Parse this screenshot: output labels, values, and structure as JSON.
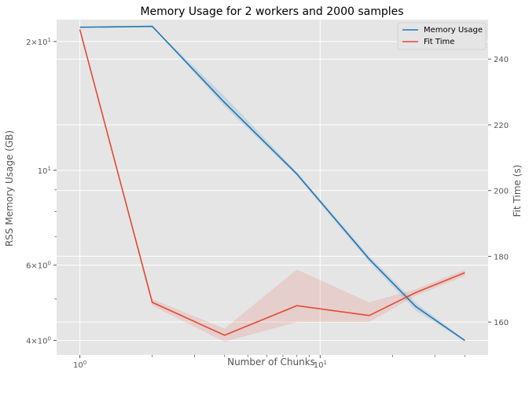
{
  "chart_data": {
    "type": "line",
    "title": "Memory Usage for 2 workers and 2000 samples",
    "xlabel": "Number of Chunks",
    "ylabel_left": "RSS Memory Usage (GB)",
    "ylabel_right": "Fit Time (s)",
    "x_scale": "log",
    "y_left_scale": "log",
    "y_right_scale": "linear",
    "xlim": [
      0.8,
      50
    ],
    "ylim_left": [
      3.7,
      22.5
    ],
    "ylim_right": [
      150,
      252
    ],
    "grid": true,
    "legend_position": "top-right",
    "x_ticks": [
      {
        "value": 1,
        "label": "10^0"
      },
      {
        "value": 10,
        "label": "10^1"
      }
    ],
    "y_left_ticks": [
      {
        "value": 4,
        "label": "4×10^0"
      },
      {
        "value": 6,
        "label": "6×10^0"
      },
      {
        "value": 10,
        "label": "10^1"
      },
      {
        "value": 20,
        "label": "2×10^1"
      }
    ],
    "y_right_ticks": [
      {
        "value": 160,
        "label": "160"
      },
      {
        "value": 180,
        "label": "180"
      },
      {
        "value": 200,
        "label": "200"
      },
      {
        "value": 220,
        "label": "220"
      },
      {
        "value": 240,
        "label": "240"
      }
    ],
    "series": [
      {
        "name": "Memory Usage",
        "axis": "left",
        "color": "#1f77b4",
        "x": [
          1,
          2,
          4,
          8,
          16,
          25,
          40
        ],
        "y": [
          21.6,
          21.7,
          14.4,
          9.8,
          6.2,
          4.8,
          4.0
        ],
        "y_lower": [
          21.6,
          21.7,
          14.1,
          9.7,
          6.1,
          4.7,
          3.98
        ],
        "y_upper": [
          21.6,
          21.7,
          14.9,
          9.9,
          6.3,
          4.9,
          4.02
        ]
      },
      {
        "name": "Fit Time",
        "axis": "right",
        "color": "#e24a33",
        "x": [
          1,
          2,
          4,
          8,
          16,
          25,
          40
        ],
        "y": [
          249,
          166,
          156,
          165,
          162,
          169,
          175
        ],
        "y_lower": [
          249,
          165,
          154,
          160,
          160,
          168,
          174
        ],
        "y_upper": [
          249,
          167,
          158,
          176,
          166,
          170,
          176
        ]
      }
    ]
  }
}
